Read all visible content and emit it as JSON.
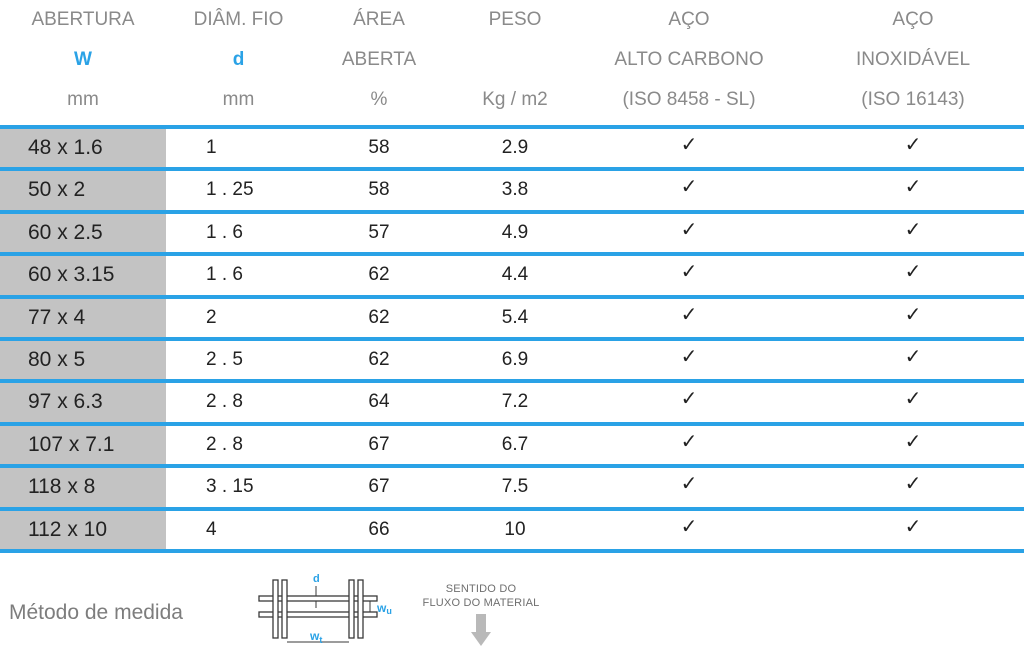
{
  "header": {
    "col0": {
      "l1": "ABERTURA",
      "l2": "W",
      "l3": "mm"
    },
    "col1": {
      "l1": "DIÂM. FIO",
      "l2": "d",
      "l3": "mm"
    },
    "col2": {
      "l1": "ÁREA",
      "l2": "ABERTA",
      "l3": "%"
    },
    "col3": {
      "l1": "PESO",
      "l2": "",
      "l3": "Kg / m2"
    },
    "col4": {
      "l1": "AÇO",
      "l2": "ALTO CARBONO",
      "l3": "(ISO 8458 - SL)"
    },
    "col5": {
      "l1": "AÇO",
      "l2": "INOXIDÁVEL",
      "l3": "(ISO 16143)"
    }
  },
  "rows": [
    {
      "w": "48  x 1.6",
      "d": "1",
      "area": "58",
      "peso": "2.9",
      "carbono": "✓",
      "inox": "✓"
    },
    {
      "w": "50  x 2",
      "d": "1 . 25",
      "area": "58",
      "peso": "3.8",
      "carbono": "✓",
      "inox": "✓"
    },
    {
      "w": "60  x 2.5",
      "d": "1 . 6",
      "area": "57",
      "peso": "4.9",
      "carbono": "✓",
      "inox": "✓"
    },
    {
      "w": "60  x 3.15",
      "d": "1 . 6",
      "area": "62",
      "peso": "4.4",
      "carbono": "✓",
      "inox": "✓"
    },
    {
      "w": "77  x 4",
      "d": "2",
      "area": "62",
      "peso": "5.4",
      "carbono": "✓",
      "inox": "✓"
    },
    {
      "w": "80  x 5",
      "d": "2 . 5",
      "area": "62",
      "peso": "6.9",
      "carbono": "✓",
      "inox": "✓"
    },
    {
      "w": "97  x 6.3",
      "d": "2 . 8",
      "area": "64",
      "peso": "7.2",
      "carbono": "✓",
      "inox": "✓"
    },
    {
      "w": "107  x 7.1",
      "d": "2 . 8",
      "area": "67",
      "peso": "6.7",
      "carbono": "✓",
      "inox": "✓"
    },
    {
      "w": "118  x 8",
      "d": "3 . 15",
      "area": "67",
      "peso": "7.5",
      "carbono": "✓",
      "inox": "✓"
    },
    {
      "w": "112  x 10",
      "d": "4",
      "area": "66",
      "peso": "10",
      "carbono": "✓",
      "inox": "✓"
    }
  ],
  "footer": {
    "label": "Método de medida",
    "diagram": {
      "d": "d",
      "wu": "w",
      "wu_sub": "u",
      "wt": "w",
      "wt_sub": "t"
    },
    "direction_line1": "SENTIDO DO",
    "direction_line2": "FLUXO DO MATERIAL"
  },
  "colors": {
    "accent": "#2aa2e6",
    "first_col_bg": "#c3c3c3",
    "header_text": "#8a8a8a"
  }
}
